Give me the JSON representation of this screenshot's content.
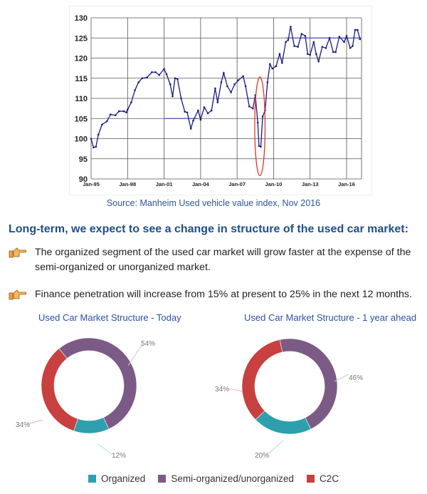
{
  "top_fragment": "...",
  "chart_data": [
    {
      "type": "line",
      "title": "",
      "xlabel": "",
      "ylabel": "",
      "ylim": [
        90,
        130
      ],
      "xlim": [
        1995,
        2017.2
      ],
      "yticks": [
        90,
        95,
        100,
        105,
        110,
        115,
        120,
        125,
        130
      ],
      "xticks": [
        {
          "label": "Jan-95",
          "x": 1995
        },
        {
          "label": "Jan-98",
          "x": 1998
        },
        {
          "label": "Jan-01",
          "x": 2001
        },
        {
          "label": "Jan-04",
          "x": 2004
        },
        {
          "label": "Jan-07",
          "x": 2007
        },
        {
          "label": "Jan-10",
          "x": 2010
        },
        {
          "label": "Jan-13",
          "x": 2013
        },
        {
          "label": "Jan-16",
          "x": 2016
        }
      ],
      "grid": true,
      "series": [
        {
          "name": "Manheim Used Vehicle Value Index",
          "color": "#1a1a80",
          "x": [
            1995.0,
            1995.2,
            1995.4,
            1995.6,
            1995.9,
            1996.3,
            1996.6,
            1997.0,
            1997.3,
            1997.7,
            1997.9,
            1998.0,
            1998.3,
            1998.6,
            1998.9,
            1999.2,
            1999.6,
            2000.0,
            2000.3,
            2000.6,
            2001.0,
            2001.2,
            2001.5,
            2001.7,
            2001.9,
            2002.1,
            2002.4,
            2002.7,
            2002.9,
            2003.2,
            2003.4,
            2003.8,
            2004.0,
            2004.3,
            2004.6,
            2004.9,
            2005.2,
            2005.4,
            2005.7,
            2005.9,
            2006.2,
            2006.5,
            2006.8,
            2007.1,
            2007.5,
            2007.7,
            2008.0,
            2008.3,
            2008.5,
            2008.7,
            2008.8,
            2008.95,
            2009.1,
            2009.3,
            2009.5,
            2009.7,
            2009.9,
            2010.2,
            2010.5,
            2010.7,
            2011.0,
            2011.2,
            2011.4,
            2011.7,
            2012.0,
            2012.3,
            2012.6,
            2012.8,
            2013.0,
            2013.3,
            2013.5,
            2013.7,
            2014.0,
            2014.3,
            2014.6,
            2014.9,
            2015.1,
            2015.4,
            2015.8,
            2016.0,
            2016.3,
            2016.5,
            2016.7,
            2016.9,
            2017.1
          ],
          "y": [
            100,
            97.8,
            98,
            101,
            103.5,
            104.3,
            106,
            105.8,
            106.8,
            106.8,
            106.5,
            107.2,
            109,
            112,
            114,
            115,
            115.2,
            116.5,
            116.5,
            115.8,
            117.3,
            116,
            113.5,
            110.5,
            115,
            114.8,
            110,
            106.7,
            106.5,
            102.5,
            104.5,
            107,
            104.7,
            107.8,
            106.3,
            107,
            112.5,
            109,
            114,
            116.3,
            113,
            111.5,
            113.5,
            114.5,
            115.5,
            113,
            108,
            107.5,
            110.8,
            104,
            98.2,
            98,
            105.5,
            107,
            114,
            118.5,
            117.4,
            118,
            121,
            118.8,
            124,
            124.5,
            127.8,
            123,
            122.8,
            126,
            125.5,
            121,
            120.8,
            124,
            121,
            119.2,
            122.8,
            122.5,
            125,
            121.5,
            121.5,
            125.3,
            124,
            125.5,
            122.5,
            123,
            127,
            127,
            124.7
          ]
        }
      ],
      "reference_lines": [
        {
          "y": 105,
          "x": [
            2001,
            2003.8
          ]
        },
        {
          "y": 110,
          "x": [
            2007.8,
            2008.5
          ]
        },
        {
          "y": 125,
          "x": [
            2011,
            2017.2
          ]
        }
      ],
      "annotation": {
        "type": "ellipse",
        "x": [
          2008.45,
          2009.3
        ],
        "y": [
          90.8,
          115.3
        ],
        "color": "#e8312c"
      },
      "source": "Source: Manheim Used vehicle value index, Nov 2016"
    },
    {
      "type": "pie",
      "title": "Used Car Market Structure - Today",
      "categories": [
        "Semi-organized/unorganized",
        "Organized",
        "C2C"
      ],
      "values": [
        54,
        12,
        34
      ],
      "labels": [
        "54%",
        "12%",
        "34%"
      ]
    },
    {
      "type": "pie",
      "title": "Used Car Market Structure - 1 year ahead",
      "categories": [
        "Semi-organized/unorganized",
        "Organized",
        "C2C"
      ],
      "values": [
        46,
        20,
        34
      ],
      "labels": [
        "46%",
        "20%",
        "34%"
      ]
    }
  ],
  "headline": "Long-term, we expect to see a change in structure of the used car market:",
  "bullets": [
    "The organized segment of the used car market will grow faster at the expense of the semi-organized or unorganized market.",
    "Finance penetration will increase from 15% at present to 25% in the next 12 months."
  ],
  "legend": [
    {
      "label": "Organized",
      "color": "#2e9fad"
    },
    {
      "label": "Semi-organized/unorganized",
      "color": "#7c5a86"
    },
    {
      "label": "C2C",
      "color": "#c8403f"
    }
  ],
  "colors": {
    "organized": "#2e9fad",
    "semi": "#7c5a86",
    "c2c": "#c8403f"
  }
}
